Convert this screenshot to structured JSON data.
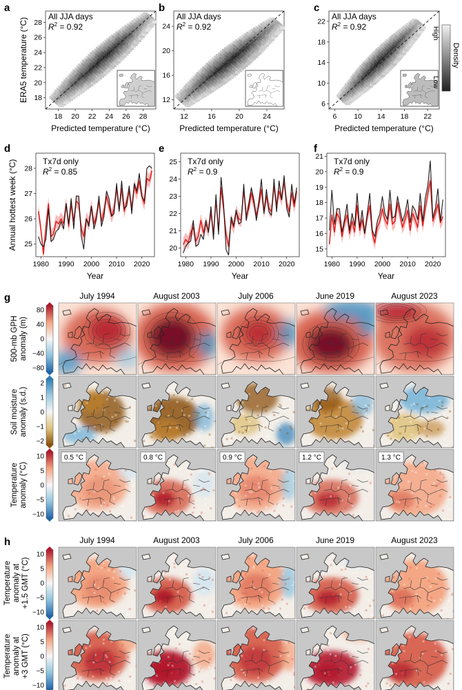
{
  "panel_letters": [
    "a",
    "b",
    "c",
    "d",
    "e",
    "f",
    "g",
    "h"
  ],
  "colors": {
    "scatter_low": "#202020",
    "scatter_high": "#ededed",
    "predicted": "#e02020",
    "band": "#f4a6a6",
    "era5": "#1a1a1a",
    "warm": "#b2182b",
    "cool": "#2166ac",
    "land_neutral": "#f3eee8",
    "ocean": "#c8c8c8",
    "dry": "#8c510a",
    "wet": "#2c7fb8"
  },
  "density_colorbar": {
    "title": "Density",
    "high": "High",
    "low": "Low"
  },
  "event_titles": [
    "July 1994",
    "August 2003",
    "July 2006",
    "June 2019",
    "August 2023"
  ],
  "chart_data": [
    {
      "panel": "a",
      "type": "scatter",
      "annotation": "All JJA days",
      "r2": "0.92",
      "xlabel": "Predicted temperature (°C)",
      "ylabel": "ERA5 temperature (°C)",
      "xlim": [
        16.5,
        29.5
      ],
      "ylim": [
        16.5,
        29.5
      ],
      "xticks": [
        18,
        20,
        22,
        24,
        26,
        28
      ],
      "yticks": [
        18,
        20,
        22,
        24,
        26,
        28
      ],
      "cloud": {
        "x0": 17.8,
        "y0": 17.5,
        "x1": 28.8,
        "y1": 28.6,
        "width": 1.5
      }
    },
    {
      "panel": "b",
      "type": "scatter",
      "annotation": "All JJA days",
      "r2": "0.92",
      "xlabel": "Predicted temperature (°C)",
      "ylabel": "",
      "xlim": [
        10.5,
        26.5
      ],
      "ylim": [
        10.5,
        26.5
      ],
      "xticks": [
        12,
        16,
        20,
        24
      ],
      "yticks": [
        12,
        16,
        20,
        24
      ],
      "cloud": {
        "x0": 11.8,
        "y0": 11.8,
        "x1": 25.5,
        "y1": 24.5,
        "width": 2.0
      }
    },
    {
      "panel": "c",
      "type": "scatter",
      "annotation": "All JJA days",
      "r2": "0.92",
      "xlabel": "Predicted temperature (°C)",
      "ylabel": "",
      "xlim": [
        5,
        24
      ],
      "ylim": [
        5,
        24
      ],
      "xticks": [
        6,
        10,
        14,
        18,
        22
      ],
      "yticks": [
        6,
        10,
        14,
        18,
        22
      ],
      "cloud": {
        "x0": 7.5,
        "y0": 6.8,
        "x1": 20.5,
        "y1": 21.5,
        "width": 2.0
      }
    },
    {
      "panel": "d",
      "type": "line",
      "annotation": "Tx7d only",
      "r2": "0.85",
      "xlabel": "Year",
      "ylabel": "Annual hottest week (°C)",
      "xlim": [
        1978,
        2025
      ],
      "ylim": [
        24.5,
        28.6
      ],
      "xticks": [
        1980,
        1990,
        2000,
        2010,
        2020
      ],
      "yticks": [
        25,
        26,
        27,
        28
      ],
      "x": [
        1979,
        1980,
        1981,
        1982,
        1983,
        1984,
        1985,
        1986,
        1987,
        1988,
        1989,
        1990,
        1991,
        1992,
        1993,
        1994,
        1995,
        1996,
        1997,
        1998,
        1999,
        2000,
        2001,
        2002,
        2003,
        2004,
        2005,
        2006,
        2007,
        2008,
        2009,
        2010,
        2011,
        2012,
        2013,
        2014,
        2015,
        2016,
        2017,
        2018,
        2019,
        2020,
        2021,
        2022,
        2023,
        2024
      ],
      "series": [
        {
          "name": "",
          "values": [
            26.3,
            25.6,
            24.6,
            25.7,
            26.6,
            25.3,
            25.4,
            25.9,
            25.8,
            26.0,
            25.8,
            26.6,
            25.7,
            26.6,
            25.9,
            26.7,
            26.6,
            25.6,
            25.3,
            26.0,
            25.8,
            26.5,
            25.8,
            26.1,
            26.7,
            25.9,
            26.3,
            26.9,
            26.5,
            26.1,
            26.4,
            27.2,
            26.4,
            27.2,
            26.3,
            26.7,
            27.1,
            26.4,
            27.3,
            27.0,
            27.5,
            26.9,
            26.6,
            27.6,
            27.5,
            27.9
          ]
        },
        {
          "name": "",
          "values": [
            25.3,
            25.0,
            24.9,
            25.2,
            26.4,
            25.1,
            25.2,
            25.5,
            25.6,
            25.9,
            25.6,
            26.6,
            25.8,
            26.8,
            25.6,
            26.9,
            26.9,
            25.3,
            24.8,
            26.0,
            25.7,
            26.5,
            25.6,
            26.0,
            26.9,
            25.7,
            26.1,
            27.1,
            26.8,
            26.1,
            26.2,
            27.4,
            26.3,
            27.5,
            26.4,
            26.5,
            27.3,
            26.2,
            27.4,
            27.1,
            27.8,
            26.9,
            26.7,
            28.0,
            28.1,
            28.0
          ]
        }
      ]
    },
    {
      "panel": "e",
      "type": "line",
      "annotation": "Tx7d only",
      "r2": "0.9",
      "xlabel": "Year",
      "ylabel": "",
      "xlim": [
        1978,
        2025
      ],
      "ylim": [
        19.5,
        25.5
      ],
      "xticks": [
        1980,
        1990,
        2000,
        2010,
        2020
      ],
      "yticks": [
        20,
        21,
        22,
        23,
        24,
        25
      ],
      "x": [
        1979,
        1980,
        1981,
        1982,
        1983,
        1984,
        1985,
        1986,
        1987,
        1988,
        1989,
        1990,
        1991,
        1992,
        1993,
        1994,
        1995,
        1996,
        1997,
        1998,
        1999,
        2000,
        2001,
        2002,
        2003,
        2004,
        2005,
        2006,
        2007,
        2008,
        2009,
        2010,
        2011,
        2012,
        2013,
        2014,
        2015,
        2016,
        2017,
        2018,
        2019,
        2020,
        2021,
        2022,
        2023,
        2024
      ],
      "series": [
        {
          "name": "",
          "values": [
            20.2,
            20.5,
            20.3,
            20.9,
            21.2,
            20.4,
            20.7,
            21.6,
            20.9,
            21.4,
            21.0,
            22.1,
            20.8,
            22.8,
            21.0,
            23.5,
            22.3,
            20.8,
            20.1,
            21.6,
            21.2,
            22.1,
            21.7,
            21.6,
            23.4,
            21.9,
            22.3,
            23.2,
            22.6,
            21.9,
            22.5,
            23.4,
            22.1,
            23.0,
            22.3,
            22.1,
            23.6,
            22.5,
            23.3,
            22.8,
            23.9,
            22.6,
            22.1,
            23.2,
            22.4,
            23.3
          ]
        },
        {
          "name": "",
          "values": [
            19.7,
            20.1,
            20.3,
            20.4,
            21.6,
            20.1,
            20.2,
            20.8,
            20.5,
            21.6,
            20.9,
            22.4,
            20.5,
            23.1,
            20.8,
            24.1,
            22.6,
            19.9,
            19.6,
            21.8,
            21.3,
            22.2,
            21.4,
            21.5,
            23.7,
            21.6,
            22.6,
            23.5,
            22.8,
            21.6,
            22.7,
            24.0,
            22.0,
            23.4,
            22.1,
            21.9,
            24.0,
            22.1,
            23.9,
            22.8,
            24.2,
            22.3,
            21.8,
            23.7,
            22.6,
            23.5
          ]
        }
      ]
    },
    {
      "panel": "f",
      "type": "line",
      "annotation": "Tx7d only",
      "r2": "0.9",
      "xlabel": "Year",
      "ylabel": "",
      "xlim": [
        1978,
        2025
      ],
      "ylim": [
        14.5,
        21.2
      ],
      "xticks": [
        1980,
        1990,
        2000,
        2010,
        2020
      ],
      "yticks": [
        15,
        16,
        17,
        18,
        19,
        20,
        21
      ],
      "x": [
        1979,
        1980,
        1981,
        1982,
        1983,
        1984,
        1985,
        1986,
        1987,
        1988,
        1989,
        1990,
        1991,
        1992,
        1993,
        1994,
        1995,
        1996,
        1997,
        1998,
        1999,
        2000,
        2001,
        2002,
        2003,
        2004,
        2005,
        2006,
        2007,
        2008,
        2009,
        2010,
        2011,
        2012,
        2013,
        2014,
        2015,
        2016,
        2017,
        2018,
        2019,
        2020,
        2021,
        2022,
        2023,
        2024
      ],
      "series": [
        {
          "name": "",
          "values": [
            15.3,
            17.2,
            16.1,
            17.3,
            17.0,
            15.8,
            16.7,
            17.2,
            16.0,
            16.8,
            16.1,
            17.8,
            16.2,
            16.9,
            16.0,
            17.1,
            17.8,
            16.0,
            15.4,
            16.4,
            16.8,
            17.6,
            16.9,
            16.6,
            17.9,
            16.6,
            16.8,
            18.0,
            17.2,
            16.4,
            16.9,
            17.5,
            16.2,
            17.3,
            16.9,
            16.4,
            17.8,
            16.5,
            17.6,
            18.6,
            19.4,
            16.8,
            17.3,
            17.9,
            16.7,
            17.1
          ]
        },
        {
          "name": "",
          "values": [
            16.2,
            18.8,
            16.6,
            17.6,
            17.6,
            16.1,
            16.9,
            17.9,
            16.2,
            17.3,
            16.5,
            18.6,
            16.4,
            17.5,
            16.0,
            17.3,
            18.6,
            16.2,
            15.8,
            16.8,
            17.3,
            18.4,
            17.3,
            16.9,
            18.8,
            17.0,
            17.1,
            18.4,
            17.6,
            16.8,
            17.3,
            18.2,
            16.7,
            17.8,
            17.5,
            16.9,
            18.6,
            16.8,
            18.3,
            19.1,
            20.7,
            17.0,
            17.6,
            18.9,
            16.8,
            18.2
          ]
        }
      ]
    }
  ],
  "map_rows": [
    {
      "label": "500-mb GPH anomaly (m)",
      "ticks": [
        "80",
        "40",
        "0",
        "−40",
        "−80"
      ],
      "kind": "gph",
      "stamps": []
    },
    {
      "label": "Soil moisture anomaly (s.d.)",
      "ticks": [
        "2",
        "1",
        "0",
        "−1",
        "−2"
      ],
      "kind": "soil",
      "stamps": []
    },
    {
      "label": "Temperature anomaly (°C)",
      "ticks": [
        "10",
        "5",
        "0",
        "−5",
        "−10"
      ],
      "kind": "temp",
      "stamps": [
        "0.5 °C",
        "0.8 °C",
        "0.9 °C",
        "1.2 °C",
        "1.3 °C"
      ]
    },
    {
      "label": "Temperature anomaly at +1.5 GMT (°C)",
      "ticks": [
        "10",
        "5",
        "0",
        "−5",
        "−10"
      ],
      "kind": "temp15",
      "stamps": []
    },
    {
      "label": "Temperature anomaly at +3 GMT (°C)",
      "ticks": [
        "10",
        "5",
        "0",
        "−5",
        "−10"
      ],
      "kind": "temp3",
      "stamps": []
    }
  ]
}
